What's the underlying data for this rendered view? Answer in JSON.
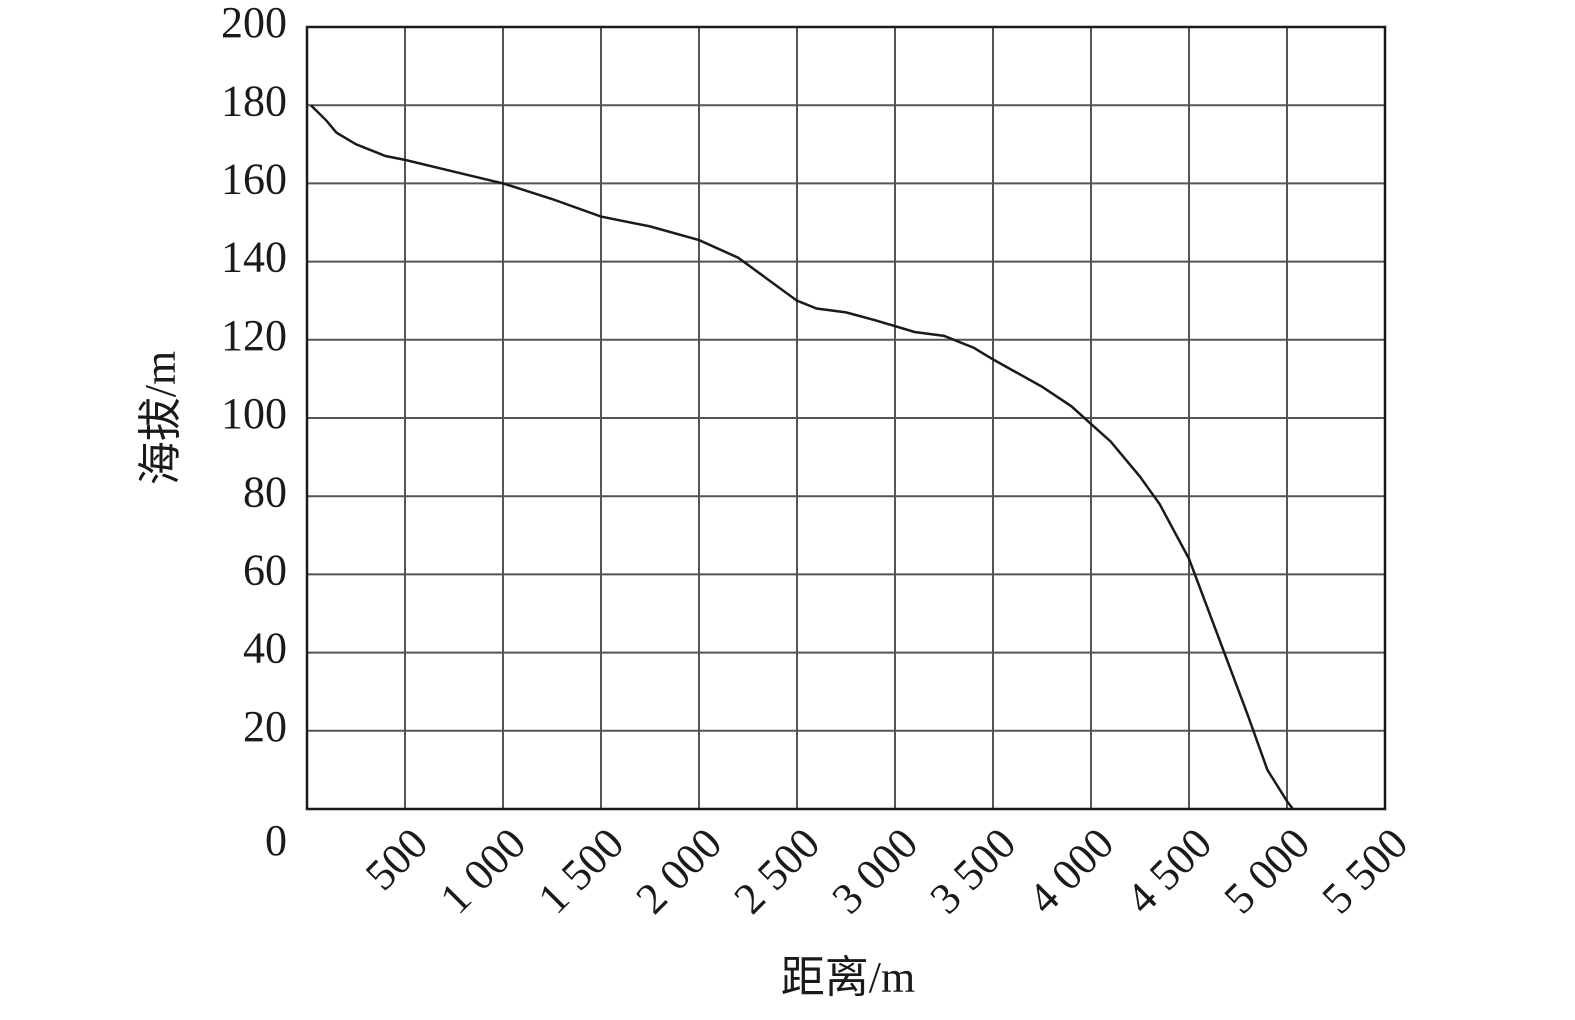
{
  "chart_data": {
    "type": "line",
    "xlabel": "距离/m",
    "ylabel": "海拔/m",
    "x": [
      20,
      100,
      150,
      250,
      400,
      500,
      750,
      1000,
      1250,
      1500,
      1750,
      2000,
      2200,
      2350,
      2500,
      2600,
      2750,
      2900,
      3100,
      3250,
      3400,
      3500,
      3750,
      3900,
      4000,
      4100,
      4250,
      4350,
      4500,
      4650,
      4800,
      4900,
      5000,
      5030
    ],
    "values": [
      180,
      176,
      173,
      170,
      167,
      166,
      163,
      160,
      156,
      151.5,
      149,
      145.5,
      141,
      135.5,
      130,
      128,
      127,
      125,
      122,
      121,
      118,
      115,
      108,
      103,
      98.5,
      94,
      85,
      78,
      64,
      44,
      24,
      10,
      2,
      0
    ],
    "color": "#1a1a1a",
    "xlim": [
      0,
      5500
    ],
    "ylim": [
      0,
      200
    ],
    "xticks": [
      500,
      {
        "value": 1000,
        "label": "1 000"
      },
      {
        "value": 1500,
        "label": "1 500"
      },
      {
        "value": 2000,
        "label": "2 000"
      },
      {
        "value": 2500,
        "label": "2 500"
      },
      {
        "value": 3000,
        "label": "3 000"
      },
      {
        "value": 3500,
        "label": "3 500"
      },
      {
        "value": 4000,
        "label": "4 000"
      },
      {
        "value": 4500,
        "label": "4 500"
      },
      {
        "value": 5000,
        "label": "5 000"
      },
      {
        "value": 5500,
        "label": "5 500"
      }
    ],
    "yticks": [
      0,
      20,
      40,
      60,
      80,
      100,
      120,
      140,
      160,
      180,
      200
    ],
    "grid": true
  }
}
